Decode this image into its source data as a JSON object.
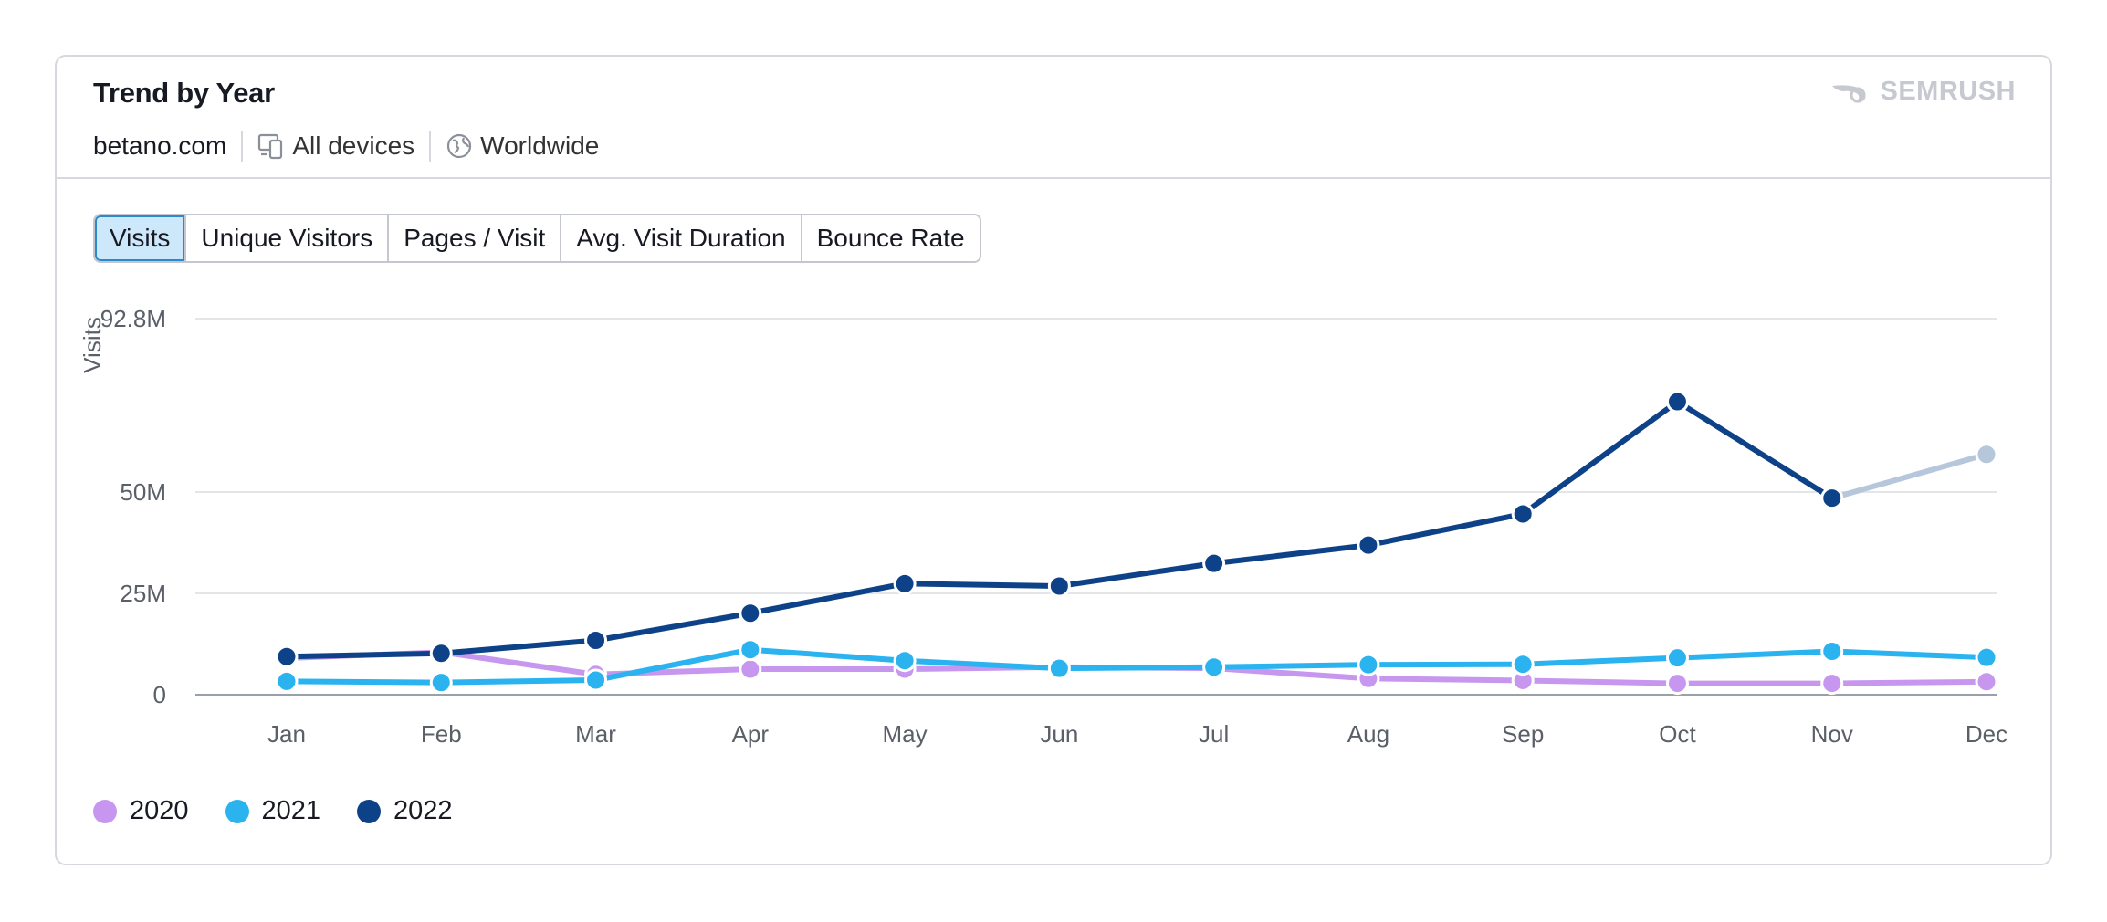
{
  "header": {
    "title": "Trend by Year",
    "domain": "betano.com",
    "device": "All devices",
    "region": "Worldwide",
    "logo_text": "SEMRUSH"
  },
  "tabs": [
    {
      "label": "Visits",
      "active": true
    },
    {
      "label": "Unique Visitors",
      "active": false
    },
    {
      "label": "Pages / Visit",
      "active": false
    },
    {
      "label": "Avg. Visit Duration",
      "active": false
    },
    {
      "label": "Bounce Rate",
      "active": false
    }
  ],
  "chart_data": {
    "type": "line",
    "title": "",
    "ylabel": "Visits",
    "xlabel": "",
    "categories": [
      "Jan",
      "Feb",
      "Mar",
      "Apr",
      "May",
      "Jun",
      "Jul",
      "Aug",
      "Sep",
      "Oct",
      "Nov",
      "Dec"
    ],
    "ylim": [
      0,
      92.8
    ],
    "yticks": [
      {
        "value": 0,
        "label": "0"
      },
      {
        "value": 25,
        "label": "25M"
      },
      {
        "value": 50,
        "label": "50M"
      },
      {
        "value": 92.8,
        "label": "92.8M"
      }
    ],
    "series": [
      {
        "name": "2020",
        "color": "#c797f0",
        "values": [
          9.0,
          10.5,
          5.0,
          6.3,
          6.3,
          6.8,
          6.5,
          4.0,
          3.5,
          2.8,
          2.8,
          3.2
        ]
      },
      {
        "name": "2021",
        "color": "#2bb3f0",
        "values": [
          3.3,
          3.0,
          3.6,
          11.1,
          8.4,
          6.5,
          6.8,
          7.4,
          7.5,
          9.1,
          10.7,
          9.2
        ]
      },
      {
        "name": "2022",
        "color": "#0e4288",
        "values": [
          9.4,
          10.2,
          13.4,
          20.1,
          27.4,
          26.8,
          32.4,
          36.9,
          44.6,
          72.3,
          48.5,
          59.3
        ],
        "partial_last": true,
        "partial_color": "#b6c7dc"
      }
    ],
    "grid": true,
    "legend_position": "bottom-left"
  }
}
